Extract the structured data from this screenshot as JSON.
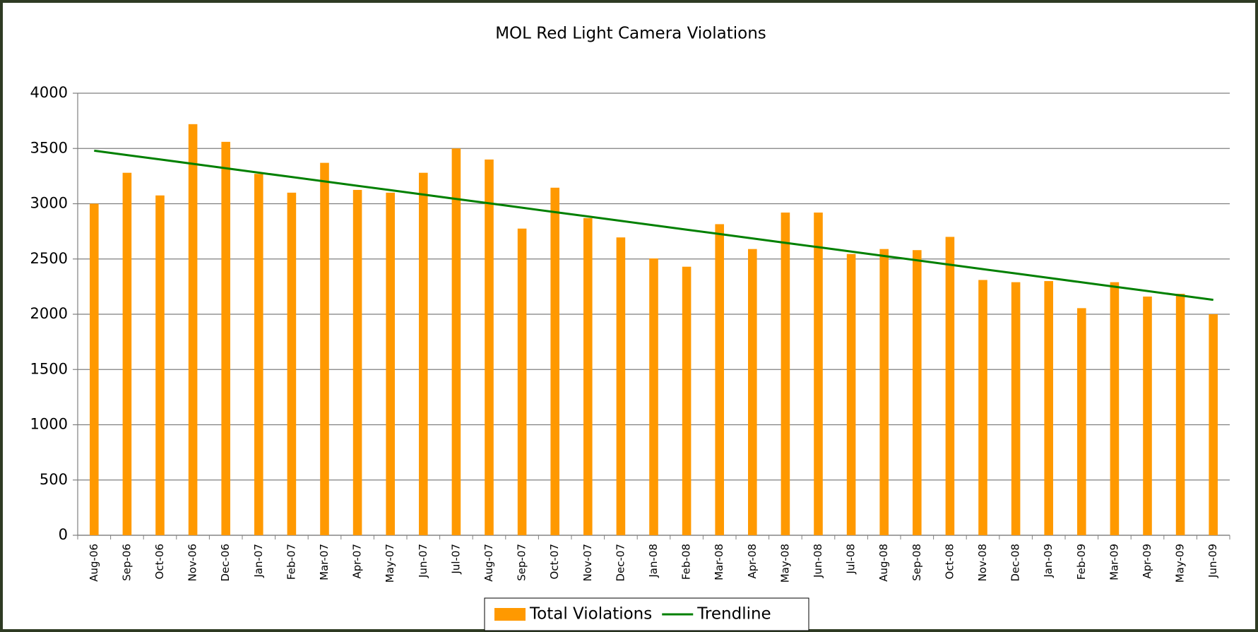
{
  "chart_data": {
    "type": "bar",
    "title": "MOL Red Light Camera Violations",
    "categories": [
      "Aug-06",
      "Sep-06",
      "Oct-06",
      "Nov-06",
      "Dec-06",
      "Jan-07",
      "Feb-07",
      "Mar-07",
      "Apr-07",
      "May-07",
      "Jun-07",
      "Jul-07",
      "Aug-07",
      "Sep-07",
      "Oct-07",
      "Nov-07",
      "Dec-07",
      "Jan-08",
      "Feb-08",
      "Mar-08",
      "Apr-08",
      "May-08",
      "Jun-08",
      "Jul-08",
      "Aug-08",
      "Sep-08",
      "Oct-08",
      "Nov-08",
      "Dec-08",
      "Jan-09",
      "Feb-09",
      "Mar-09",
      "Apr-09",
      "May-09",
      "Jun-09"
    ],
    "series": [
      {
        "name": "Total Violations",
        "type": "bar",
        "color": "#ff9900",
        "values": [
          3000,
          3280,
          3075,
          3720,
          3560,
          3270,
          3100,
          3370,
          3125,
          3100,
          3280,
          3500,
          3400,
          2775,
          3145,
          2870,
          2695,
          2505,
          2430,
          2815,
          2590,
          2920,
          2920,
          2545,
          2590,
          2580,
          2700,
          2310,
          2290,
          2300,
          2055,
          2290,
          2160,
          2185,
          2000
        ]
      },
      {
        "name": "Trendline",
        "type": "line",
        "color": "#008000",
        "values": [
          3480,
          3440,
          3401,
          3361,
          3321,
          3281,
          3242,
          3202,
          3162,
          3123,
          3083,
          3043,
          3004,
          2964,
          2924,
          2885,
          2845,
          2805,
          2765,
          2726,
          2686,
          2646,
          2607,
          2567,
          2527,
          2488,
          2448,
          2408,
          2369,
          2329,
          2289,
          2249,
          2210,
          2170,
          2130
        ]
      }
    ],
    "ylim": [
      0,
      4000
    ],
    "yticks": [
      0,
      500,
      1000,
      1500,
      2000,
      2500,
      3000,
      3500,
      4000
    ],
    "grid": true,
    "legend": "bottom"
  }
}
